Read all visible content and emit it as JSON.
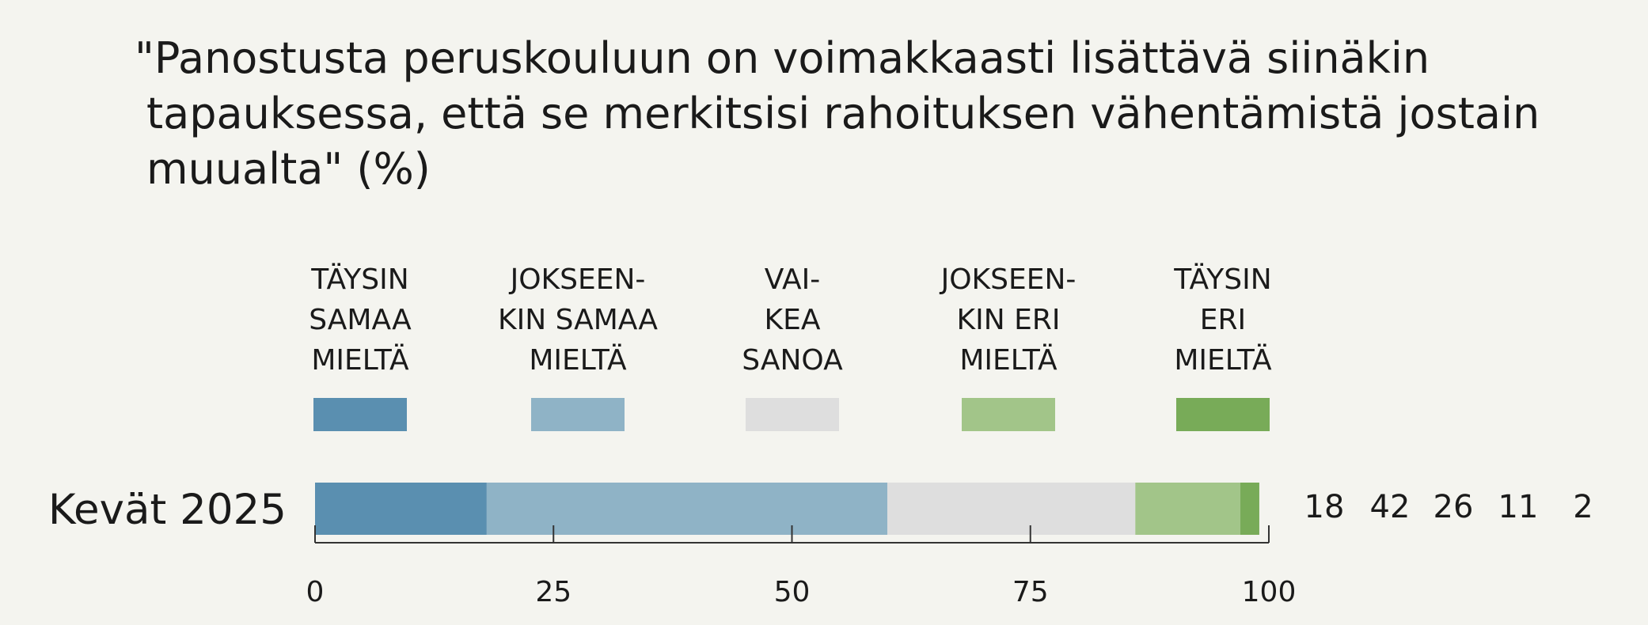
{
  "chart_data": {
    "type": "bar",
    "orientation": "horizontal-stacked",
    "title_lines": [
      "\"Panostusta peruskouluun  on voimakkaasti lisättävä siinäkin",
      "tapauksessa, että se merkitsisi rahoituksen vähentämistä jostain",
      "muualta\" (%)"
    ],
    "categories": [
      "Kevät 2025"
    ],
    "series": [
      {
        "name": "TÄYSIN SAMAA MIELTÄ",
        "label_lines": [
          "TÄYSIN",
          "SAMAA",
          "MIELTÄ"
        ],
        "values": [
          18
        ],
        "color": "#5a8fb0"
      },
      {
        "name": "JOKSEEN- KIN SAMAA MIELTÄ",
        "label_lines": [
          "JOKSEEN-",
          "KIN SAMAA",
          "MIELTÄ"
        ],
        "values": [
          42
        ],
        "color": "#8fb3c6"
      },
      {
        "name": "VAI- KEA SANOA",
        "label_lines": [
          "VAI-",
          "KEA",
          "SANOA"
        ],
        "values": [
          26
        ],
        "color": "#dedede"
      },
      {
        "name": "JOKSEEN- KIN ERI MIELTÄ",
        "label_lines": [
          "JOKSEEN-",
          "KIN ERI",
          "MIELTÄ"
        ],
        "values": [
          11
        ],
        "color": "#a2c589"
      },
      {
        "name": "TÄYSIN ERI MIELTÄ",
        "label_lines": [
          "TÄYSIN",
          "ERI",
          "MIELTÄ"
        ],
        "values": [
          2
        ],
        "color": "#78ab58"
      }
    ],
    "value_labels": [
      "18",
      "42",
      "26",
      "11",
      "2"
    ],
    "xlim": [
      0,
      100
    ],
    "xticks": [
      0,
      25,
      50,
      75,
      100
    ],
    "grid": false,
    "legend_position": "top"
  }
}
